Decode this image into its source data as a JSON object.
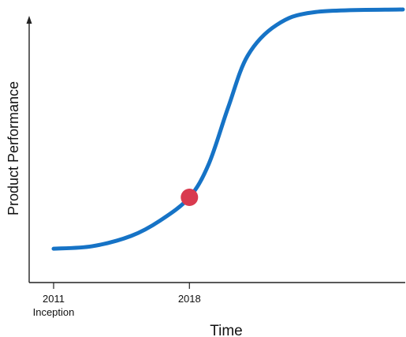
{
  "colors": {
    "curve": "#1673c6",
    "marker": "#d93a4f",
    "axis": "#222222"
  },
  "chart_data": {
    "type": "line",
    "title": "",
    "xlabel": "Time",
    "ylabel": "Product Performance",
    "x_ticks": [
      {
        "value": 2011,
        "label": "2011",
        "sublabel": "Inception"
      },
      {
        "value": 2018,
        "label": "2018",
        "sublabel": ""
      }
    ],
    "xlim": [
      2011,
      2029
    ],
    "ylim": [
      0,
      1
    ],
    "y_ticks": [],
    "grid": false,
    "legend": "none",
    "series": [
      {
        "points": [
          [
            2011.0,
            0.07
          ],
          [
            2013.0,
            0.08
          ],
          [
            2015.0,
            0.12
          ],
          [
            2016.5,
            0.18
          ],
          [
            2018.0,
            0.27
          ],
          [
            2019.0,
            0.4
          ],
          [
            2020.0,
            0.62
          ],
          [
            2021.0,
            0.82
          ],
          [
            2022.5,
            0.94
          ],
          [
            2024.5,
            0.99
          ],
          [
            2029.0,
            1.0
          ]
        ]
      }
    ],
    "highlight": {
      "x": 2018.0,
      "y": 0.27
    }
  }
}
